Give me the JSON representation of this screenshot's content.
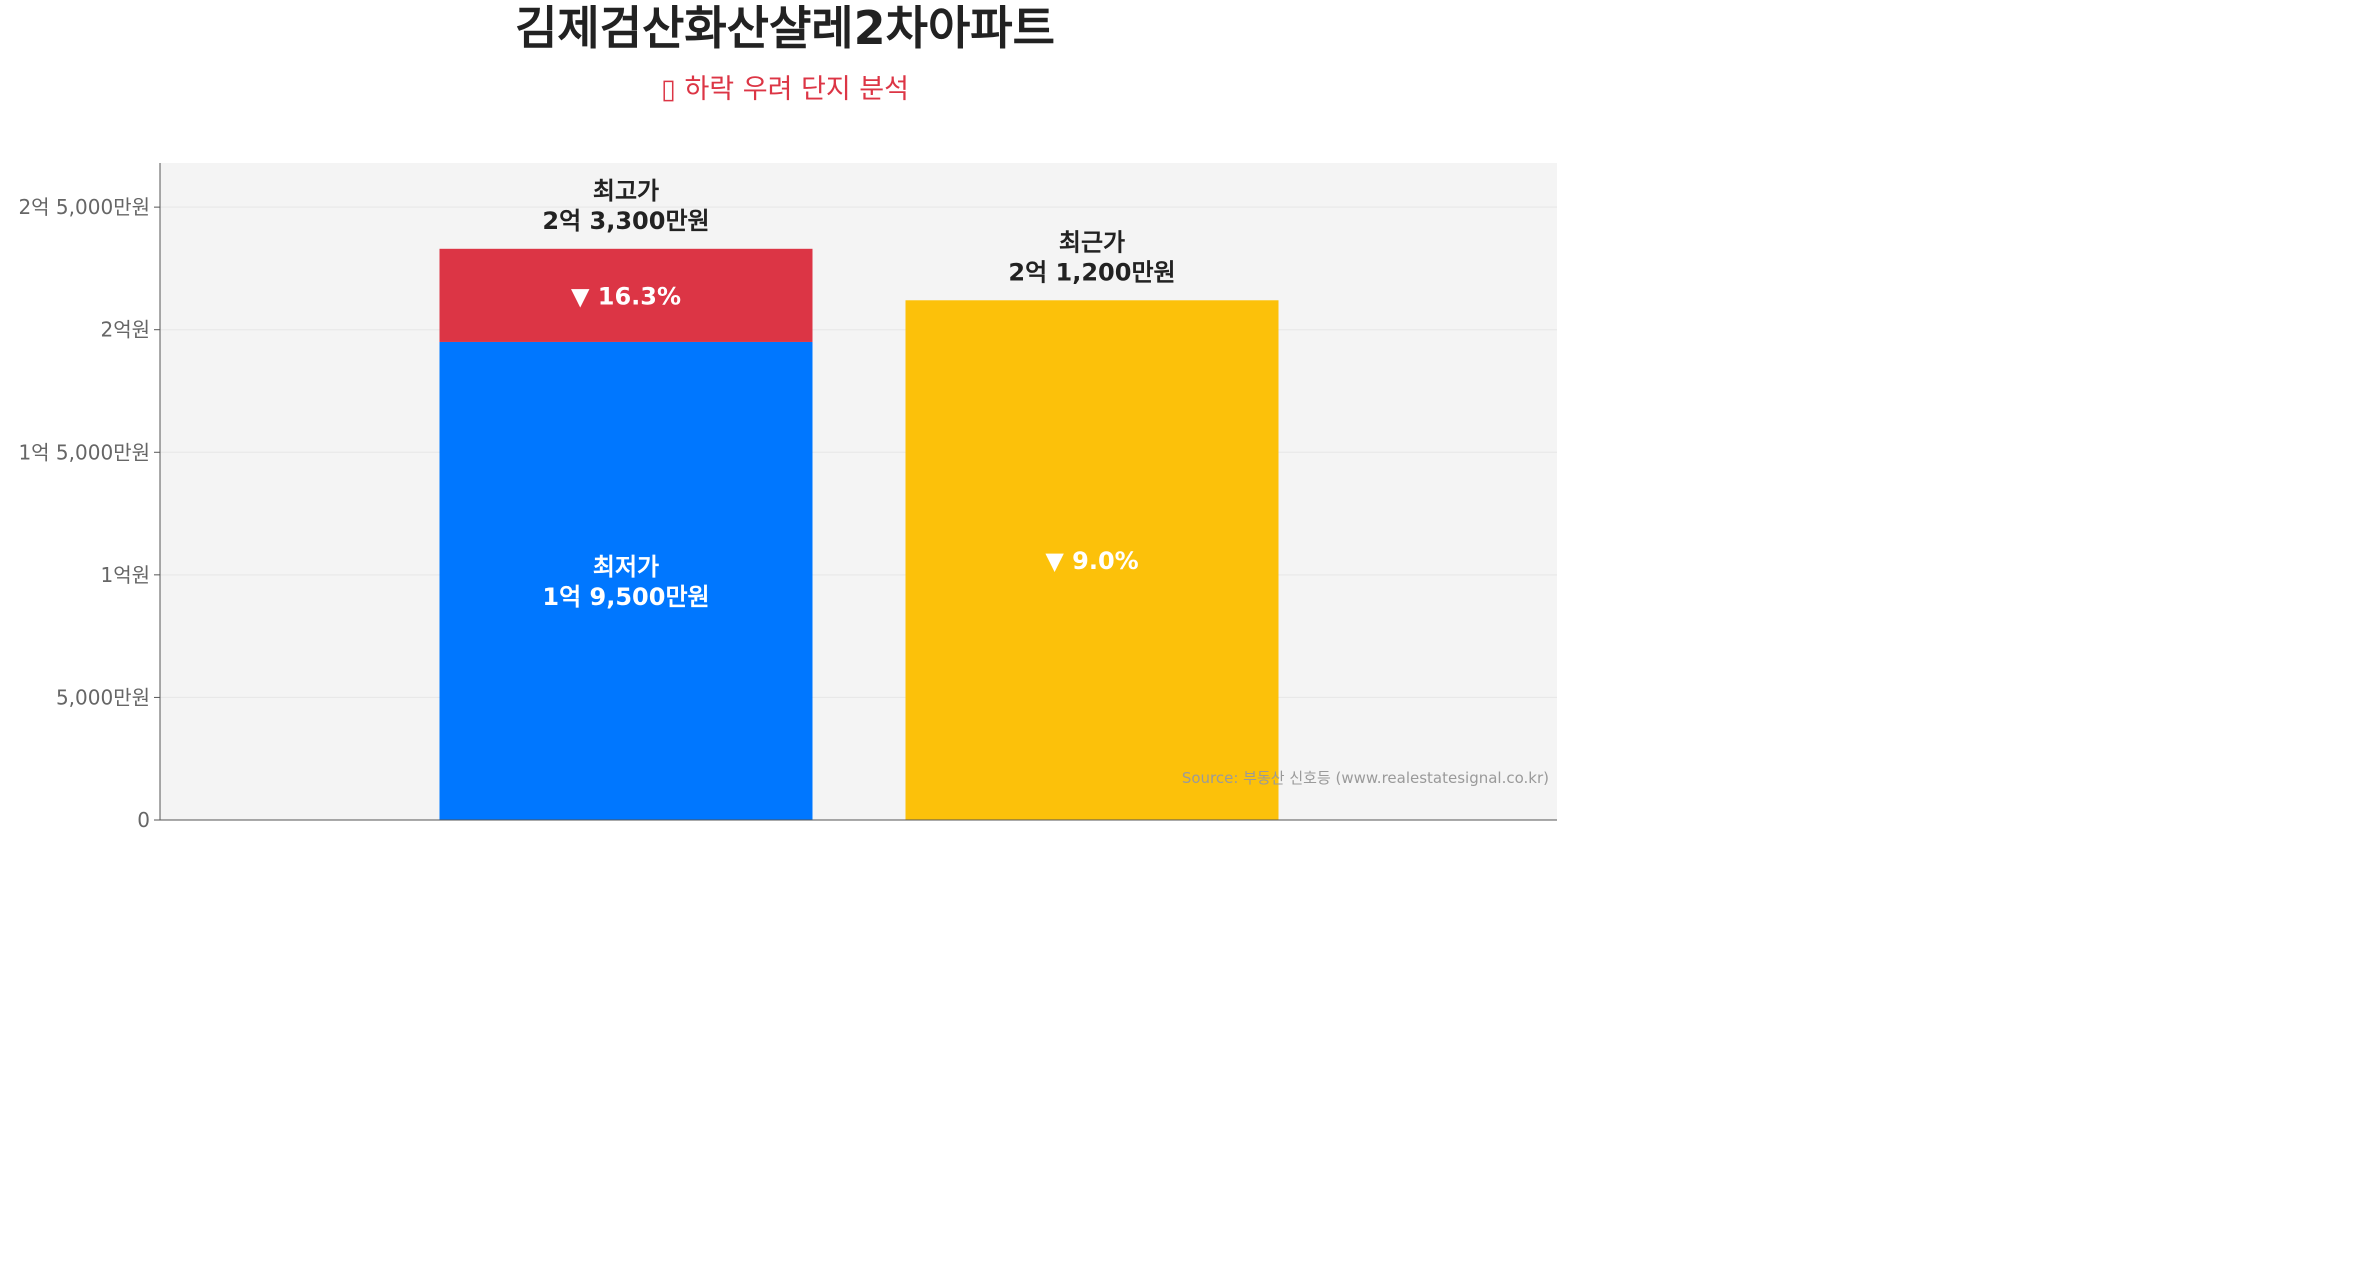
{
  "title": "김제검산화산샬레2차아파트",
  "subtitle": "▯ 하락 우려 단지 분석",
  "source": "Source: 부동산 신호등 (www.realestatesignal.co.kr)",
  "colors": {
    "min_bar": "#0077ff",
    "drop_bar": "#dc3545",
    "recent_bar": "#fcc10a",
    "plot_bg": "#f4f4f4",
    "grid": "#e6e6e6",
    "axis": "#555555",
    "subtitle": "#dc3545"
  },
  "chart_data": {
    "type": "bar",
    "stacked": true,
    "unit": "만원",
    "ylim": [
      0,
      26800
    ],
    "yticks": [
      {
        "value": 0,
        "label": "0"
      },
      {
        "value": 5000,
        "label": "5,000만원"
      },
      {
        "value": 10000,
        "label": "1억원"
      },
      {
        "value": 15000,
        "label": "1억 5,000만원"
      },
      {
        "value": 20000,
        "label": "2억원"
      },
      {
        "value": 25000,
        "label": "2억 5,000만원"
      }
    ],
    "grid": true,
    "legend": "none",
    "bars": [
      {
        "name": "최고가",
        "segments": [
          {
            "name": "최저가",
            "value": 19500,
            "color": "#0077ff",
            "label": [
              "최저가",
              "1억 9,500만원"
            ]
          },
          {
            "name": "하락",
            "value": 3800,
            "color": "#dc3545",
            "label": [
              "▼ 16.3%"
            ]
          }
        ],
        "total": 23300,
        "top_label": [
          "최고가",
          "2억 3,300만원"
        ]
      },
      {
        "name": "최근가",
        "segments": [
          {
            "name": "최근가",
            "value": 21200,
            "color": "#fcc10a",
            "label": [
              "▼ 9.0%"
            ]
          }
        ],
        "total": 21200,
        "top_label": [
          "최근가",
          "2억 1,200만원"
        ]
      }
    ]
  }
}
